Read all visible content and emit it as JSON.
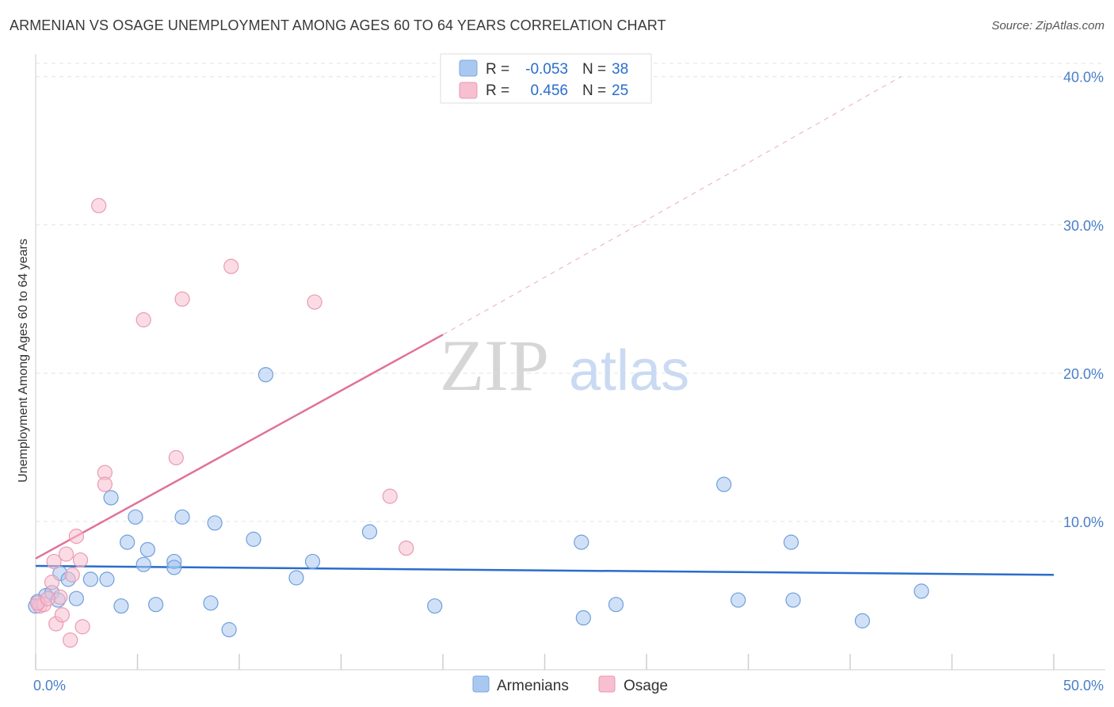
{
  "header": {
    "title": "ARMENIAN VS OSAGE UNEMPLOYMENT AMONG AGES 60 TO 64 YEARS CORRELATION CHART",
    "source": "Source: ZipAtlas.com"
  },
  "watermark": {
    "zip": "ZIP",
    "atlas": "atlas"
  },
  "stats": [
    {
      "r_label": "R =",
      "r_value": "-0.053",
      "n_label": "N =",
      "n_value": "38",
      "color": "#a9c8f0",
      "border": "#7aa6e0"
    },
    {
      "r_label": "R =",
      "r_value": "0.456",
      "n_label": "N =",
      "n_value": "25",
      "color": "#f7bfd0",
      "border": "#e99ab3"
    }
  ],
  "chart_data": {
    "type": "scatter",
    "title": "ARMENIAN VS OSAGE UNEMPLOYMENT AMONG AGES 60 TO 64 YEARS CORRELATION CHART",
    "xlabel": "",
    "ylabel": "Unemployment Among Ages 60 to 64 years",
    "xlim": [
      0,
      50
    ],
    "ylim": [
      0,
      41
    ],
    "x_tick_labels": [
      {
        "value": 0,
        "label": "0.0%"
      },
      {
        "value": 50,
        "label": "50.0%"
      }
    ],
    "y_tick_labels": [
      {
        "value": 10,
        "label": "10.0%"
      },
      {
        "value": 20,
        "label": "20.0%"
      },
      {
        "value": 30,
        "label": "30.0%"
      },
      {
        "value": 40,
        "label": "40.0%"
      }
    ],
    "legend": [
      "Armenians",
      "Osage"
    ],
    "series": [
      {
        "name": "Armenians",
        "color": "#a9c8f0",
        "stroke": "#6f9fdc",
        "trend": {
          "x": [
            0,
            50
          ],
          "y": [
            7.0,
            6.4
          ],
          "color": "#2a6dcc",
          "dashed_extension": false
        },
        "points": [
          [
            0.1,
            4.6
          ],
          [
            0.5,
            5.0
          ],
          [
            0.8,
            5.2
          ],
          [
            1.1,
            4.7
          ],
          [
            1.2,
            6.5
          ],
          [
            1.6,
            6.1
          ],
          [
            2.0,
            4.8
          ],
          [
            2.7,
            6.1
          ],
          [
            3.5,
            6.1
          ],
          [
            3.7,
            11.6
          ],
          [
            4.2,
            4.3
          ],
          [
            4.5,
            8.6
          ],
          [
            4.9,
            10.3
          ],
          [
            5.3,
            7.1
          ],
          [
            5.5,
            8.1
          ],
          [
            5.9,
            4.4
          ],
          [
            6.8,
            7.3
          ],
          [
            6.8,
            6.9
          ],
          [
            7.2,
            10.3
          ],
          [
            8.6,
            4.5
          ],
          [
            8.8,
            9.9
          ],
          [
            9.5,
            2.7
          ],
          [
            10.7,
            8.8
          ],
          [
            11.3,
            19.9
          ],
          [
            12.8,
            6.2
          ],
          [
            13.6,
            7.3
          ],
          [
            16.4,
            9.3
          ],
          [
            19.6,
            4.3
          ],
          [
            26.8,
            8.6
          ],
          [
            26.9,
            3.5
          ],
          [
            28.5,
            4.4
          ],
          [
            33.8,
            12.5
          ],
          [
            34.5,
            4.7
          ],
          [
            37.1,
            8.6
          ],
          [
            37.2,
            4.7
          ],
          [
            40.6,
            3.3
          ],
          [
            43.5,
            5.3
          ],
          [
            0.0,
            4.3
          ]
        ]
      },
      {
        "name": "Osage",
        "color": "#f7bfd0",
        "stroke": "#e99ab3",
        "trend": {
          "x": [
            0,
            20
          ],
          "y": [
            7.5,
            22.6
          ],
          "x_dashed_end": 42.5,
          "y_dashed_end": 40.0,
          "color": "#e0729a",
          "dashed_extension": true
        },
        "points": [
          [
            0.2,
            4.3
          ],
          [
            0.4,
            4.4
          ],
          [
            0.8,
            5.9
          ],
          [
            0.9,
            7.3
          ],
          [
            1.0,
            3.1
          ],
          [
            1.2,
            4.9
          ],
          [
            1.3,
            3.7
          ],
          [
            1.5,
            7.8
          ],
          [
            1.7,
            2.0
          ],
          [
            1.8,
            6.4
          ],
          [
            2.0,
            9.0
          ],
          [
            2.2,
            7.4
          ],
          [
            2.3,
            2.9
          ],
          [
            3.1,
            31.3
          ],
          [
            3.4,
            13.3
          ],
          [
            3.4,
            12.5
          ],
          [
            5.3,
            23.6
          ],
          [
            6.9,
            14.3
          ],
          [
            7.2,
            25.0
          ],
          [
            9.6,
            27.2
          ],
          [
            13.7,
            24.8
          ],
          [
            17.4,
            11.7
          ],
          [
            18.2,
            8.2
          ],
          [
            0.1,
            4.5
          ],
          [
            0.6,
            4.8
          ]
        ]
      }
    ]
  }
}
